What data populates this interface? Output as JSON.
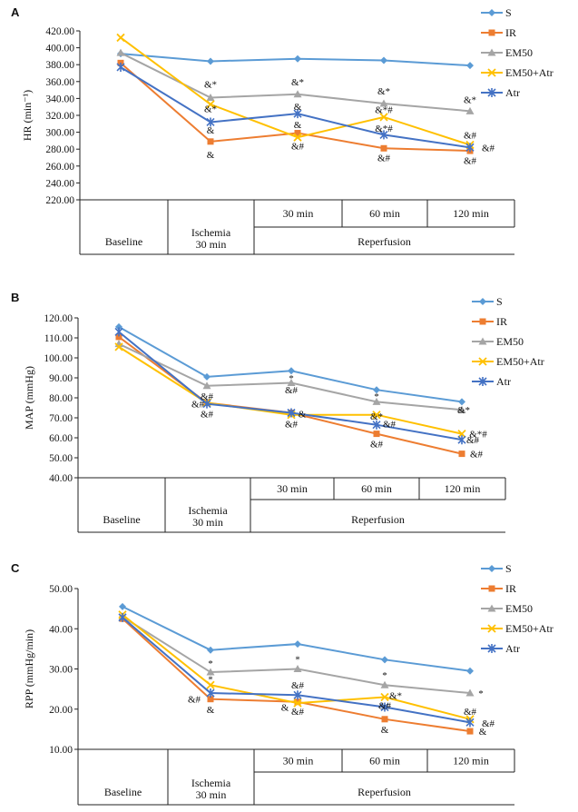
{
  "chart_data": [
    {
      "panel_label": "A",
      "type": "line",
      "ylabel": "HR (min⁻¹)",
      "ylim": [
        220,
        420
      ],
      "y_ticks": [
        "220.00",
        "240.00",
        "260.00",
        "280.00",
        "300.00",
        "320.00",
        "340.00",
        "360.00",
        "380.00",
        "400.00",
        "420.00"
      ],
      "categories": [
        "Baseline",
        "Ischemia 30 min",
        "30 min",
        "60 min",
        "120 min"
      ],
      "series": [
        {
          "name": "S",
          "color": "#5b9bd5",
          "marker": "diamond",
          "values": [
            393,
            384,
            387,
            385,
            379
          ]
        },
        {
          "name": "IR",
          "color": "#ed7d31",
          "marker": "square",
          "values": [
            382,
            289,
            299,
            281,
            278
          ]
        },
        {
          "name": "EM50",
          "color": "#a5a5a5",
          "marker": "triangle",
          "values": [
            394,
            341,
            345,
            334,
            325
          ]
        },
        {
          "name": "EM50+Atr",
          "color": "#ffc000",
          "marker": "x",
          "values": [
            412,
            333,
            294,
            318,
            285
          ]
        },
        {
          "name": "Atr",
          "color": "#4472c4",
          "marker": "asterisk",
          "values": [
            377,
            312,
            322,
            297,
            282
          ]
        }
      ],
      "annotations": [
        {
          "cat": 1,
          "y": 357,
          "text": "&*",
          "color": "#a5a5a5"
        },
        {
          "cat": 1,
          "y": 328,
          "text": "&*",
          "color": "#ffc000"
        },
        {
          "cat": 1,
          "y": 303,
          "text": "&",
          "color": "#4472c4"
        },
        {
          "cat": 1,
          "y": 274,
          "text": "&",
          "color": "#ed7d31"
        },
        {
          "cat": 2,
          "y": 360,
          "text": "&*",
          "color": "#a5a5a5"
        },
        {
          "cat": 2,
          "y": 331,
          "text": "&",
          "color": "#4472c4"
        },
        {
          "cat": 2,
          "y": 309,
          "text": "&",
          "color": "#ed7d31"
        },
        {
          "cat": 2,
          "y": 284,
          "text": "&#",
          "color": "#ffc000"
        },
        {
          "cat": 3,
          "y": 349,
          "text": "&*",
          "color": "#a5a5a5"
        },
        {
          "cat": 3,
          "y": 327,
          "text": "&*#",
          "color": "#ffc000"
        },
        {
          "cat": 3,
          "y": 305,
          "text": "&*#",
          "color": "#4472c4"
        },
        {
          "cat": 3,
          "y": 270,
          "text": "&#",
          "color": "#ed7d31"
        },
        {
          "cat": 4,
          "y": 339,
          "text": "&*",
          "color": "#a5a5a5"
        },
        {
          "cat": 4,
          "y": 297,
          "text": "&#",
          "color": "#ffc000"
        },
        {
          "cat": 4,
          "y": 282,
          "text": "&#",
          "color": "#4472c4",
          "dx": 20
        },
        {
          "cat": 4,
          "y": 267,
          "text": "&#",
          "color": "#ed7d31"
        }
      ],
      "table": {
        "row1": [
          "",
          "",
          "30 min",
          "60 min",
          "120 min"
        ],
        "baseline": "Baseline",
        "ischemia": [
          "Ischemia",
          "30 min"
        ],
        "reperfusion": "Reperfusion"
      }
    },
    {
      "panel_label": "B",
      "type": "line",
      "ylabel": "MAP (mmHg)",
      "ylim": [
        40,
        120
      ],
      "y_ticks": [
        "40.00",
        "50.00",
        "60.00",
        "70.00",
        "80.00",
        "90.00",
        "100.00",
        "110.00",
        "120.00"
      ],
      "categories": [
        "Baseline",
        "Ischemia 30 min",
        "30 min",
        "60 min",
        "120 min"
      ],
      "series": [
        {
          "name": "S",
          "color": "#5b9bd5",
          "marker": "diamond",
          "values": [
            115.5,
            90.5,
            93.5,
            84,
            78
          ]
        },
        {
          "name": "IR",
          "color": "#ed7d31",
          "marker": "square",
          "values": [
            110.5,
            77.5,
            72.5,
            62,
            52
          ]
        },
        {
          "name": "EM50",
          "color": "#a5a5a5",
          "marker": "triangle",
          "values": [
            107,
            86,
            87.5,
            78,
            74
          ]
        },
        {
          "name": "EM50+Atr",
          "color": "#ffc000",
          "marker": "x",
          "values": [
            105.5,
            77.5,
            71.5,
            71.5,
            62
          ]
        },
        {
          "name": "Atr",
          "color": "#4472c4",
          "marker": "asterisk",
          "values": [
            113,
            77,
            72.5,
            66.5,
            59
          ]
        }
      ],
      "annotations": [
        {
          "cat": 1,
          "y": 81,
          "text": "&#",
          "color": "#ed7d31"
        },
        {
          "cat": 1,
          "y": 77,
          "text": "&#",
          "color": "#4472c4",
          "dx": -10
        },
        {
          "cat": 1,
          "y": 72,
          "text": "&#",
          "color": "#ffc000"
        },
        {
          "cat": 2,
          "y": 84,
          "text": "&#",
          "color": "#ed7d31"
        },
        {
          "cat": 2,
          "y": 90,
          "text": "*",
          "color": "#a5a5a5"
        },
        {
          "cat": 2,
          "y": 72,
          "text": "&",
          "color": "#4472c4",
          "dx": 12
        },
        {
          "cat": 2,
          "y": 67,
          "text": "&#",
          "color": "#ffc000"
        },
        {
          "cat": 3,
          "y": 81,
          "text": "*",
          "color": "#a5a5a5"
        },
        {
          "cat": 3,
          "y": 71,
          "text": "&*",
          "color": "#ffc000"
        },
        {
          "cat": 3,
          "y": 67,
          "text": "&#",
          "color": "#4472c4",
          "dx": 14
        },
        {
          "cat": 3,
          "y": 57,
          "text": "&#",
          "color": "#ed7d31"
        },
        {
          "cat": 4,
          "y": 74,
          "text": "&*",
          "color": "#a5a5a5",
          "dx": 2
        },
        {
          "cat": 4,
          "y": 62,
          "text": "&*#",
          "color": "#ffc000",
          "dx": 18
        },
        {
          "cat": 4,
          "y": 59,
          "text": "&#",
          "color": "#4472c4",
          "dx": 12
        },
        {
          "cat": 4,
          "y": 52,
          "text": "&#",
          "color": "#ed7d31",
          "dx": 16
        }
      ],
      "table": {
        "row1": [
          "",
          "",
          "30 min",
          "60 min",
          "120 min"
        ],
        "baseline": "Baseline",
        "ischemia": [
          "Ischemia",
          "30 min"
        ],
        "reperfusion": "Reperfusion"
      }
    },
    {
      "panel_label": "C",
      "type": "line",
      "ylabel": "RPP (mmHg/min)",
      "ylim": [
        10,
        50
      ],
      "y_ticks": [
        "10.00",
        "20.00",
        "30.00",
        "40.00",
        "50.00"
      ],
      "categories": [
        "Baseline",
        "Ischemia 30 min",
        "30 min",
        "60 min",
        "120 min"
      ],
      "series": [
        {
          "name": "S",
          "color": "#5b9bd5",
          "marker": "diamond",
          "values": [
            45.5,
            34.7,
            36.2,
            32.3,
            29.5
          ]
        },
        {
          "name": "IR",
          "color": "#ed7d31",
          "marker": "square",
          "values": [
            42.5,
            22.5,
            21.8,
            17.5,
            14.5
          ]
        },
        {
          "name": "EM50",
          "color": "#a5a5a5",
          "marker": "triangle",
          "values": [
            43,
            29.2,
            30,
            26,
            24
          ]
        },
        {
          "name": "EM50+Atr",
          "color": "#ffc000",
          "marker": "x",
          "values": [
            43.5,
            26,
            21.5,
            23,
            17.5
          ]
        },
        {
          "name": "Atr",
          "color": "#4472c4",
          "marker": "asterisk",
          "values": [
            42.8,
            24,
            23.5,
            20.5,
            16.7
          ]
        }
      ],
      "annotations": [
        {
          "cat": 1,
          "y": 31.5,
          "text": "*",
          "color": "#a5a5a5"
        },
        {
          "cat": 1,
          "y": 27.5,
          "text": "*",
          "color": "#ffc000"
        },
        {
          "cat": 1,
          "y": 22.5,
          "text": "&#",
          "color": "#4472c4",
          "dx": -18
        },
        {
          "cat": 1,
          "y": 20,
          "text": "&",
          "color": "#ed7d31"
        },
        {
          "cat": 2,
          "y": 32.5,
          "text": "*",
          "color": "#a5a5a5"
        },
        {
          "cat": 2,
          "y": 26,
          "text": "&#",
          "color": "#4472c4"
        },
        {
          "cat": 2,
          "y": 20.5,
          "text": "&",
          "color": "#ed7d31",
          "dx": -14
        },
        {
          "cat": 2,
          "y": 19.5,
          "text": "&#",
          "color": "#ffc000"
        },
        {
          "cat": 3,
          "y": 28.5,
          "text": "*",
          "color": "#a5a5a5"
        },
        {
          "cat": 3,
          "y": 23.5,
          "text": "&*",
          "color": "#ffc000",
          "dx": 12
        },
        {
          "cat": 3,
          "y": 21,
          "text": "&#",
          "color": "#4472c4"
        },
        {
          "cat": 3,
          "y": 15,
          "text": "&",
          "color": "#ed7d31"
        },
        {
          "cat": 4,
          "y": 24,
          "text": "*",
          "color": "#a5a5a5",
          "dx": 12
        },
        {
          "cat": 4,
          "y": 19.5,
          "text": "&#",
          "color": "#ffc000"
        },
        {
          "cat": 4,
          "y": 16.5,
          "text": "&#",
          "color": "#4472c4",
          "dx": 20
        },
        {
          "cat": 4,
          "y": 14.5,
          "text": "&",
          "color": "#ed7d31",
          "dx": 14
        }
      ],
      "table": {
        "row1": [
          "",
          "",
          "30 min",
          "60 min",
          "120 min"
        ],
        "baseline": "Baseline",
        "ischemia": [
          "Ischemia",
          "30 min"
        ],
        "reperfusion": "Reperfusion"
      }
    }
  ]
}
